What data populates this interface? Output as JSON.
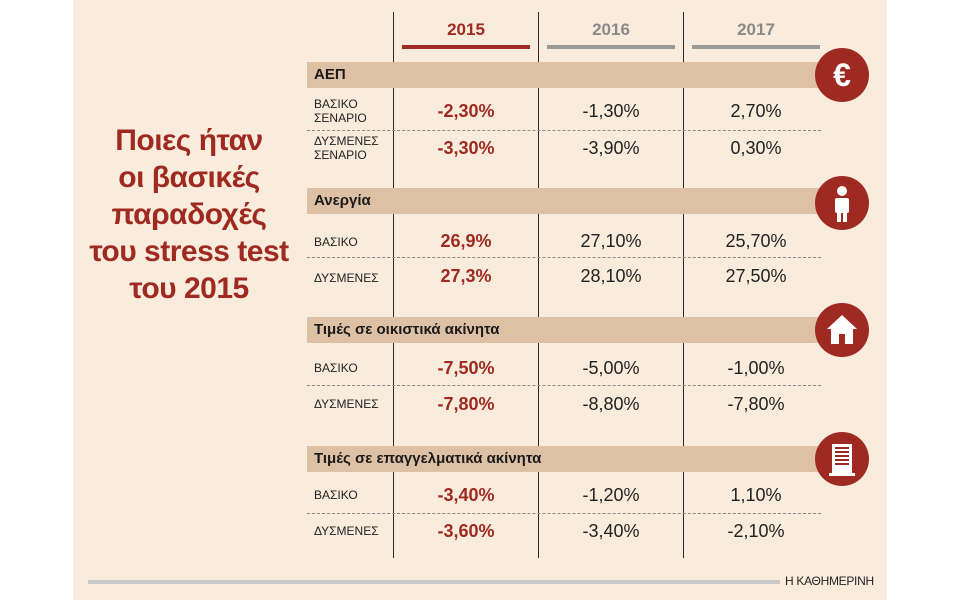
{
  "title_lines": [
    "Ποιες ήταν",
    "οι βασικές",
    "παραδοχές",
    "του stress test",
    "του 2015"
  ],
  "years": [
    "2015",
    "2016",
    "2017"
  ],
  "colors": {
    "accent": "#9e2a22",
    "band": "#dec1a5",
    "background": "#f9ecdc",
    "year_bar_gray": "#9a9a9a"
  },
  "sections": [
    {
      "label": "ΑΕΠ",
      "icon": "euro-icon",
      "rows": [
        {
          "label": "ΒΑΣΙΚΟ ΣΕΝΑΡΙΟ",
          "values": [
            "-2,30%",
            "-1,30%",
            "2,70%"
          ]
        },
        {
          "label": "ΔΥΣΜΕΝΕΣ ΣΕΝΑΡΙΟ",
          "values": [
            "-3,30%",
            "-3,90%",
            "0,30%"
          ]
        }
      ]
    },
    {
      "label": "Ανεργία",
      "icon": "person-icon",
      "rows": [
        {
          "label": "ΒΑΣΙΚΟ",
          "values": [
            "26,9%",
            "27,10%",
            "25,70%"
          ]
        },
        {
          "label": "ΔΥΣΜΕΝΕΣ",
          "values": [
            "27,3%",
            "28,10%",
            "27,50%"
          ]
        }
      ]
    },
    {
      "label": "Τιμές σε οικιστικά ακίνητα",
      "icon": "house-icon",
      "rows": [
        {
          "label": "ΒΑΣΙΚΟ",
          "values": [
            "-7,50%",
            "-5,00%",
            "-1,00%"
          ]
        },
        {
          "label": "ΔΥΣΜΕΝΕΣ",
          "values": [
            "-7,80%",
            "-8,80%",
            "-7,80%"
          ]
        }
      ]
    },
    {
      "label": "Τιμές σε επαγγελματικά ακίνητα",
      "icon": "office-building-icon",
      "rows": [
        {
          "label": "ΒΑΣΙΚΟ",
          "values": [
            "-3,40%",
            "-1,20%",
            "1,10%"
          ]
        },
        {
          "label": "ΔΥΣΜΕΝΕΣ",
          "values": [
            "-3,60%",
            "-3,40%",
            "-2,10%"
          ]
        }
      ]
    }
  ],
  "credit": "Η ΚΑΘΗΜΕΡΙΝΗ"
}
